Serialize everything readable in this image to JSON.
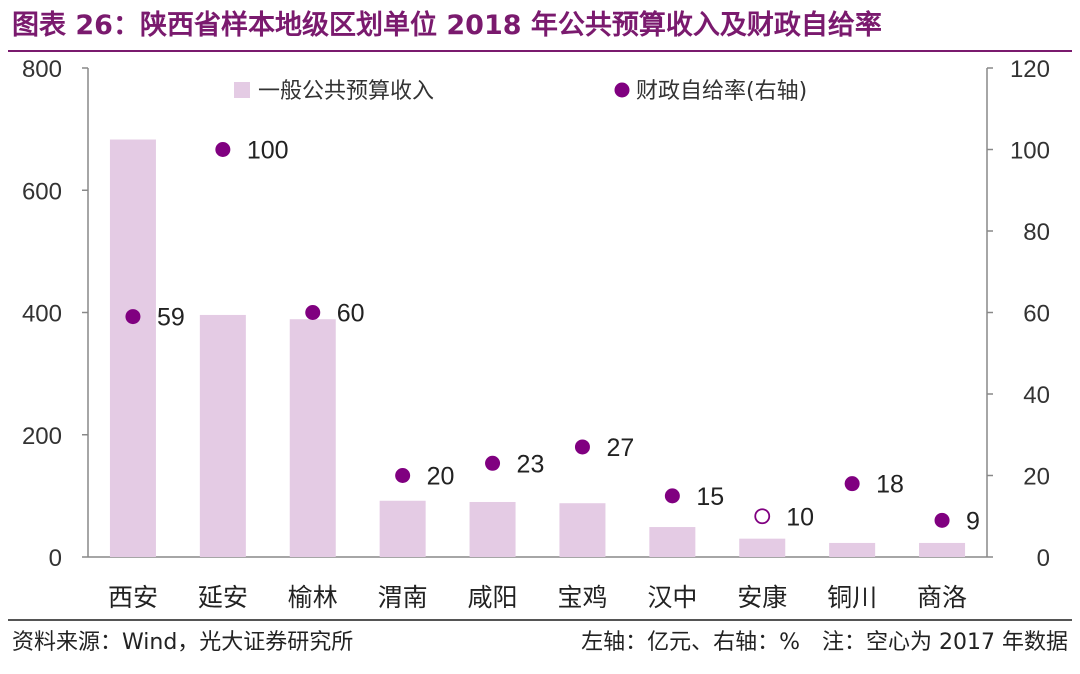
{
  "title": "图表 26：陕西省样本地级区划单位 2018 年公共预算收入及财政自给率",
  "footer": {
    "source": "资料来源：Wind，光大证券研究所",
    "note": "左轴：亿元、右轴：%　注：空心为 2017 年数据"
  },
  "colors": {
    "bar": "#e4cbe4",
    "dot": "#800080",
    "title": "#7a1a6e"
  },
  "chart_data": {
    "type": "bar",
    "categories": [
      "西安",
      "延安",
      "榆林",
      "渭南",
      "咸阳",
      "宝鸡",
      "汉中",
      "安康",
      "铜川",
      "商洛"
    ],
    "series": [
      {
        "name": "一般公共预算收入",
        "axis": "left",
        "kind": "bar",
        "values": [
          683,
          396,
          389,
          92,
          90,
          88,
          49,
          30,
          23,
          23
        ]
      },
      {
        "name": "财政自给率(右轴)",
        "axis": "right",
        "kind": "scatter",
        "values": [
          59,
          100,
          60,
          20,
          23,
          27,
          15,
          10,
          18,
          9
        ],
        "hollow": [
          false,
          false,
          false,
          false,
          false,
          false,
          false,
          true,
          false,
          false
        ]
      }
    ],
    "y_left": {
      "min": 0,
      "max": 800,
      "ticks": [
        "0",
        "200",
        "400",
        "600",
        "800"
      ],
      "unit": "亿元"
    },
    "y_right": {
      "min": 0,
      "max": 120,
      "ticks": [
        "0",
        "20",
        "40",
        "60",
        "80",
        "100",
        "120"
      ],
      "unit": "%"
    },
    "legend_position": "top"
  }
}
